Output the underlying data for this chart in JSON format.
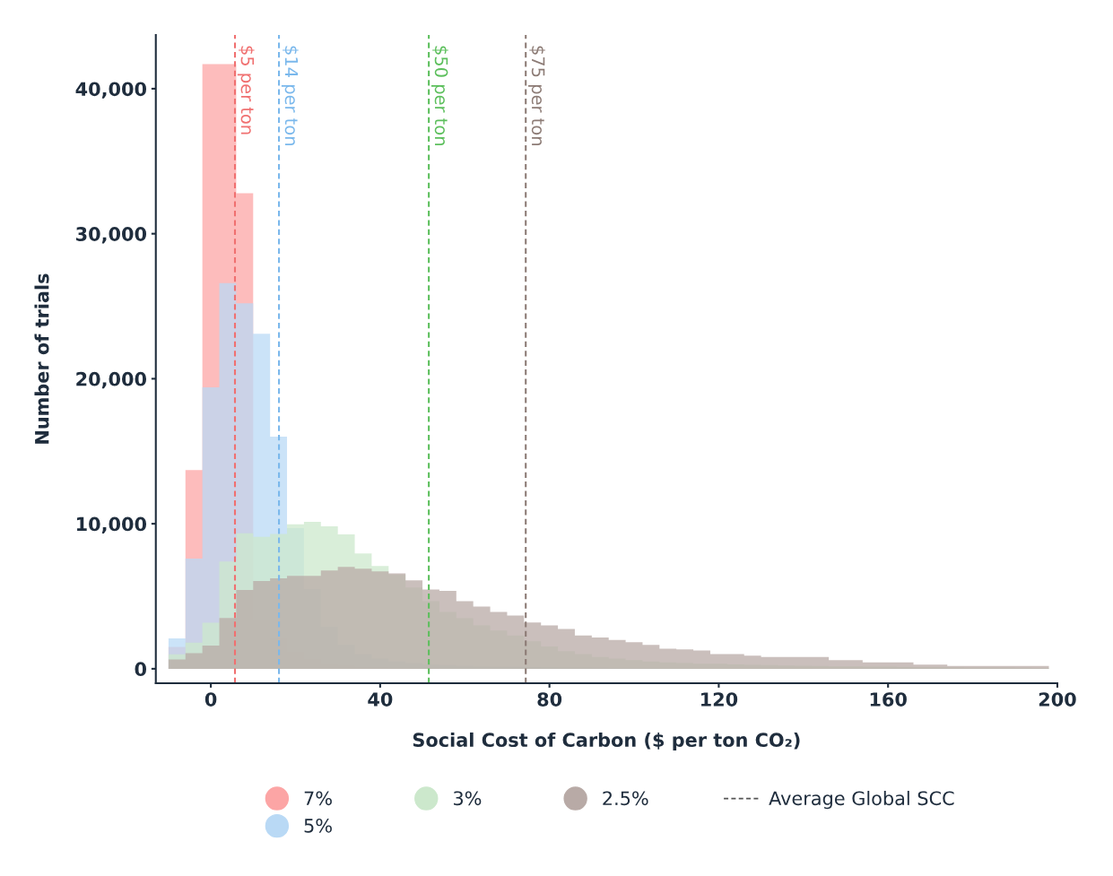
{
  "chart_data": {
    "type": "histogram",
    "xlabel": "Social Cost of Carbon ($ per ton CO₂)",
    "ylabel": "Number of trials",
    "bins": [
      -10,
      -6,
      -2,
      2,
      6,
      10,
      14,
      18,
      22,
      26,
      30,
      34,
      38,
      42,
      46,
      50,
      54,
      58,
      62,
      66,
      70,
      74,
      78,
      82,
      86,
      90,
      94,
      98,
      102,
      106,
      110,
      114,
      118,
      122,
      126,
      130,
      134,
      138,
      142,
      146,
      150,
      154,
      158,
      162,
      166,
      170,
      174,
      178,
      182,
      186,
      190,
      194,
      198
    ],
    "series": [
      {
        "name": "7%",
        "color": "#fca5a5",
        "values": [
          1500,
          13700,
          41700,
          41700,
          32800,
          3400,
          2100,
          1200,
          700,
          400,
          250,
          150,
          100,
          60,
          50,
          40,
          30,
          30,
          20,
          20,
          20,
          10,
          10,
          10,
          0,
          0,
          0,
          0,
          0,
          0,
          0,
          0,
          0,
          0,
          0,
          0,
          0,
          0,
          0,
          0,
          0,
          0,
          0,
          0,
          0,
          0,
          0,
          0,
          0,
          0,
          0,
          0
        ]
      },
      {
        "name": "5%",
        "color": "#b9d9f5",
        "values": [
          2100,
          7600,
          19400,
          26600,
          25200,
          23100,
          16000,
          9700,
          5500,
          2900,
          1640,
          1010,
          700,
          500,
          400,
          300,
          250,
          200,
          170,
          150,
          130,
          110,
          100,
          90,
          80,
          70,
          60,
          50,
          50,
          40,
          40,
          30,
          30,
          30,
          20,
          20,
          20,
          20,
          10,
          10,
          10,
          10,
          10,
          10,
          10,
          10,
          10,
          10,
          10,
          10,
          10,
          10
        ]
      },
      {
        "name": "3%",
        "color": "#cce8cc",
        "values": [
          1000,
          1800,
          3170,
          7400,
          9350,
          9100,
          9300,
          9970,
          10140,
          9830,
          9270,
          7960,
          7090,
          6500,
          5600,
          4660,
          3920,
          3480,
          2990,
          2630,
          2300,
          1890,
          1540,
          1220,
          1010,
          810,
          700,
          600,
          500,
          440,
          390,
          350,
          350,
          300,
          270,
          250,
          230,
          210,
          190,
          170,
          160,
          150,
          140,
          130,
          120,
          110,
          100,
          90,
          80,
          80,
          70,
          60
        ]
      },
      {
        "name": "2.5%",
        "color": "#b8aaa6",
        "values": [
          640,
          1080,
          1600,
          3500,
          5430,
          6050,
          6240,
          6400,
          6400,
          6780,
          7030,
          6900,
          6720,
          6570,
          6100,
          5470,
          5370,
          4660,
          4290,
          3920,
          3670,
          3190,
          2990,
          2740,
          2300,
          2150,
          1990,
          1830,
          1640,
          1390,
          1330,
          1260,
          1010,
          1010,
          910,
          810,
          810,
          810,
          810,
          600,
          600,
          440,
          440,
          440,
          290,
          290,
          190,
          190,
          190,
          190,
          190,
          190
        ]
      }
    ],
    "ref_lines": [
      {
        "axis": "x",
        "value": 5.7,
        "label": "$5 per ton",
        "color": "#f07070",
        "line_style": "dashed"
      },
      {
        "axis": "x",
        "value": 16.1,
        "label": "$14 per ton",
        "color": "#7ab8ec",
        "line_style": "dashed"
      },
      {
        "axis": "x",
        "value": 51.5,
        "label": "$50 per ton",
        "color": "#5cbf5c",
        "line_style": "dashed"
      },
      {
        "axis": "x",
        "value": 74.4,
        "label": "$75 per ton",
        "color": "#8c7b75",
        "line_style": "dashed"
      }
    ],
    "annotations": [
      "Average Global SCC"
    ],
    "xlim": [
      -13,
      200
    ],
    "xticks": [
      0,
      40,
      80,
      120,
      160,
      200
    ],
    "ylim": [
      -1000,
      43700
    ],
    "yticks": [
      {
        "value": 0,
        "label": "0"
      },
      {
        "value": 10000,
        "label": "10,000"
      },
      {
        "value": 20000,
        "label": "20,000"
      },
      {
        "value": 30000,
        "label": "30,000"
      },
      {
        "value": 40000,
        "label": "40,000"
      }
    ],
    "grid": false,
    "legend": "bottom"
  }
}
